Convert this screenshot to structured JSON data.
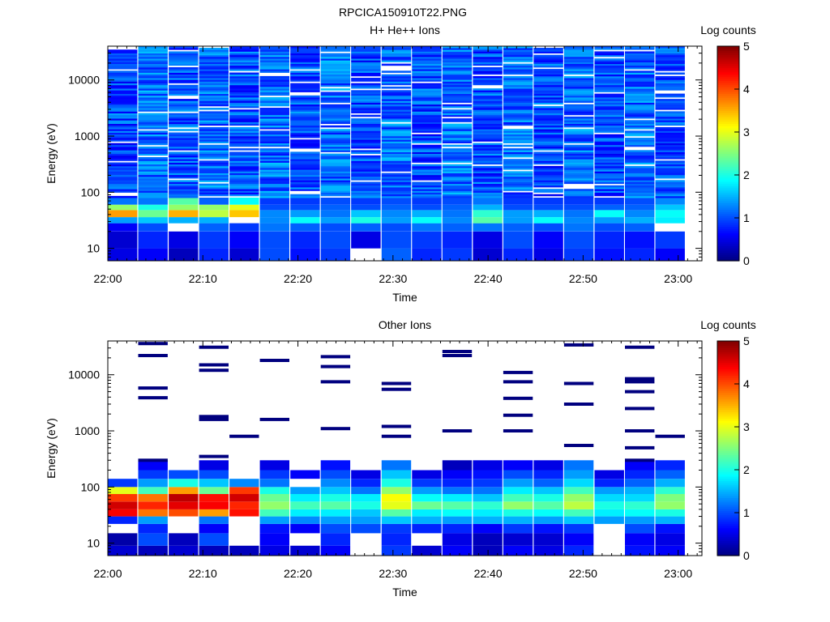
{
  "figure_title": "RPCICA150910T22.PNG",
  "colormap": [
    "#00007f",
    "#0000ff",
    "#007fff",
    "#00ffff",
    "#7fff7f",
    "#ffff00",
    "#ff7f00",
    "#ff0000",
    "#7f0000"
  ],
  "chart_data": [
    {
      "type": "heatmap",
      "title": "H+ He++ Ions",
      "xlabel": "Time",
      "ylabel": "Energy (eV)",
      "y_scale": "log",
      "ylim": [
        6,
        40000
      ],
      "x_ticks": [
        "22:00",
        "22:10",
        "22:20",
        "22:30",
        "22:40",
        "22:50",
        "23:00"
      ],
      "y_ticks": [
        "10",
        "100",
        "1000",
        "10000"
      ],
      "colorbar": {
        "label": "Log counts",
        "range": [
          0,
          5
        ],
        "ticks": [
          "0",
          "1",
          "2",
          "3",
          "4",
          "5"
        ]
      },
      "sweep_start_minutes": [
        0,
        3.2,
        6.4,
        9.6,
        12.8,
        16,
        19.2,
        22.4,
        25.6,
        28.8,
        32,
        35.2,
        38.4,
        41.6,
        44.8,
        48,
        51.2,
        54.4,
        57.6
      ],
      "sweep_duration_minutes": 3.1,
      "low_energy_profile": [
        {
          "e_lo": 6,
          "e_hi": 10,
          "values": [
            0.5,
            0.6,
            0.3,
            0.8,
            0.4,
            1.0,
            0.7,
            0.9,
            null,
            1.1,
            0.8,
            0.9,
            0.4,
            0.8,
            0.5,
            0.9,
            0.7,
            0.8,
            0.6
          ]
        },
        {
          "e_lo": 10,
          "e_hi": 20,
          "values": [
            0.4,
            0.8,
            0.5,
            0.9,
            0.6,
            1.0,
            0.8,
            1.0,
            0.5,
            1.0,
            0.9,
            0.8,
            0.5,
            1.0,
            0.6,
            1.0,
            0.8,
            0.7,
            0.9
          ]
        },
        {
          "e_lo": 20,
          "e_hi": 28,
          "values": [
            0.6,
            1.0,
            null,
            1.1,
            0.9,
            1.2,
            1.1,
            1.0,
            1.1,
            1.0,
            1.2,
            1.1,
            1.2,
            1.1,
            1.0,
            1.2,
            1.0,
            1.1,
            null
          ]
        },
        {
          "e_lo": 28,
          "e_hi": 36,
          "values": [
            1.4,
            1.6,
            1.5,
            1.5,
            null,
            1.3,
            1.9,
            1.4,
            2.0,
            1.4,
            1.9,
            1.3,
            2.3,
            1.4,
            1.9,
            1.3,
            1.4,
            1.5,
            1.8
          ]
        },
        {
          "e_lo": 36,
          "e_hi": 48,
          "values": [
            3.6,
            2.4,
            3.5,
            2.8,
            3.4,
            1.3,
            1.4,
            1.2,
            1.6,
            1.3,
            1.5,
            1.2,
            2.1,
            1.4,
            1.5,
            1.2,
            1.9,
            1.3,
            1.9
          ]
        },
        {
          "e_lo": 48,
          "e_hi": 60,
          "values": [
            2.6,
            2.0,
            2.6,
            2.6,
            3.0,
            1.0,
            1.0,
            1.1,
            1.0,
            1.1,
            1.0,
            1.1,
            1.5,
            1.0,
            1.0,
            1.0,
            1.1,
            1.1,
            1.6
          ]
        },
        {
          "e_lo": 60,
          "e_hi": 80,
          "values": [
            1.2,
            1.2,
            2.3,
            1.1,
            1.9,
            0.9,
            0.9,
            1.0,
            0.9,
            1.0,
            0.9,
            1.0,
            1.2,
            0.9,
            0.9,
            0.9,
            0.9,
            1.0,
            1.3
          ]
        }
      ],
      "high_energy_typical_log_counts": 1.0,
      "note_gaps": "white horizontal lines mark energy steps with no data"
    },
    {
      "type": "heatmap",
      "title": "Other Ions",
      "xlabel": "Time",
      "ylabel": "Energy (eV)",
      "y_scale": "log",
      "ylim": [
        6,
        40000
      ],
      "x_ticks": [
        "22:00",
        "22:10",
        "22:20",
        "22:30",
        "22:40",
        "22:50",
        "23:00"
      ],
      "y_ticks": [
        "10",
        "100",
        "1000",
        "10000"
      ],
      "colorbar": {
        "label": "Log counts",
        "range": [
          0,
          5
        ],
        "ticks": [
          "0",
          "1",
          "2",
          "3",
          "4",
          "5"
        ]
      },
      "sweep_start_minutes": [
        0,
        3.2,
        6.4,
        9.6,
        12.8,
        16,
        19.2,
        22.4,
        25.6,
        28.8,
        32,
        35.2,
        38.4,
        41.6,
        44.8,
        48,
        51.2,
        54.4,
        57.6
      ],
      "sweep_duration_minutes": 3.1,
      "low_energy_profile": [
        {
          "e_lo": 6,
          "e_hi": 9,
          "values": [
            0.4,
            0.3,
            0.4,
            0.3,
            0.3,
            0.5,
            0.4,
            0.6,
            null,
            0.9,
            0.4,
            0.6,
            0.3,
            0.6,
            0.5,
            0.8,
            null,
            0.7,
            0.6
          ]
        },
        {
          "e_lo": 9,
          "e_hi": 15,
          "values": [
            0.2,
            1.0,
            0.3,
            1.0,
            null,
            0.6,
            null,
            0.8,
            null,
            0.8,
            null,
            0.5,
            0.3,
            0.4,
            0.4,
            0.6,
            null,
            0.6,
            0.5
          ]
        },
        {
          "e_lo": 15,
          "e_hi": 22,
          "values": [
            null,
            0.8,
            null,
            0.6,
            null,
            0.7,
            0.6,
            1.0,
            1.0,
            0.9,
            0.8,
            0.8,
            0.6,
            0.9,
            0.7,
            0.9,
            null,
            1.0,
            0.7
          ]
        },
        {
          "e_lo": 22,
          "e_hi": 30,
          "values": [
            0.8,
            1.4,
            null,
            1.2,
            null,
            1.4,
            1.3,
            1.4,
            1.4,
            1.6,
            1.5,
            1.4,
            1.5,
            1.5,
            1.4,
            1.6,
            1.4,
            1.4,
            1.5
          ]
        },
        {
          "e_lo": 30,
          "e_hi": 40,
          "values": [
            4.4,
            3.8,
            4.0,
            3.6,
            4.3,
            2.2,
            1.8,
            1.8,
            1.6,
            2.3,
            1.8,
            1.9,
            1.8,
            2.0,
            1.9,
            2.2,
            1.8,
            1.9,
            2.0
          ]
        },
        {
          "e_lo": 40,
          "e_hi": 55,
          "values": [
            4.6,
            4.2,
            4.5,
            4.4,
            4.2,
            2.6,
            2.2,
            2.3,
            2.0,
            3.0,
            2.4,
            2.3,
            2.1,
            2.6,
            2.3,
            2.8,
            2.0,
            2.1,
            2.6
          ]
        },
        {
          "e_lo": 55,
          "e_hi": 75,
          "values": [
            4.1,
            3.8,
            4.7,
            4.3,
            4.6,
            2.4,
            1.8,
            2.0,
            1.8,
            3.1,
            1.9,
            1.8,
            1.6,
            2.2,
            2.0,
            2.6,
            1.7,
            1.7,
            2.5
          ]
        },
        {
          "e_lo": 75,
          "e_hi": 100,
          "values": [
            3.0,
            2.2,
            3.6,
            2.4,
            4.1,
            2.0,
            1.4,
            1.6,
            1.2,
            2.6,
            1.4,
            1.2,
            1.2,
            1.8,
            1.6,
            2.2,
            1.4,
            1.5,
            2.1
          ]
        },
        {
          "e_lo": 100,
          "e_hi": 140,
          "values": [
            0.9,
            1.4,
            2.0,
            1.6,
            1.3,
            1.2,
            null,
            1.3,
            0.8,
            2.0,
            0.9,
            0.8,
            0.9,
            1.4,
            1.1,
            1.7,
            0.8,
            1.1,
            1.5
          ]
        },
        {
          "e_lo": 140,
          "e_hi": 200,
          "values": [
            null,
            0.9,
            1.0,
            1.0,
            null,
            0.9,
            0.6,
            1.0,
            0.5,
            1.6,
            0.5,
            0.6,
            0.7,
            1.0,
            0.8,
            1.4,
            0.5,
            0.8,
            1.1
          ]
        },
        {
          "e_lo": 200,
          "e_hi": 300,
          "values": [
            null,
            0.6,
            null,
            0.5,
            null,
            0.5,
            null,
            0.7,
            null,
            1.2,
            null,
            0.3,
            0.5,
            0.6,
            0.5,
            1.2,
            null,
            0.6,
            0.8
          ]
        }
      ],
      "sparse_lines_ev": [
        [],
        [
          36000,
          22000,
          5800,
          3900,
          300
        ],
        [],
        [
          31000,
          15000,
          12000,
          1800,
          1600,
          350
        ],
        [
          800
        ],
        [
          18000,
          1600
        ],
        [],
        [
          21000,
          14000,
          7500,
          1100
        ],
        [],
        [
          7000,
          5500,
          1200,
          800
        ],
        [],
        [
          26000,
          22000,
          1000
        ],
        [],
        [
          11000,
          7500,
          3800,
          1900,
          1000
        ],
        [],
        [
          34000,
          7000,
          3000,
          550
        ],
        [],
        [
          31000,
          8500,
          7500,
          5000,
          2500,
          1000,
          500,
          300
        ],
        [
          800
        ]
      ]
    }
  ]
}
